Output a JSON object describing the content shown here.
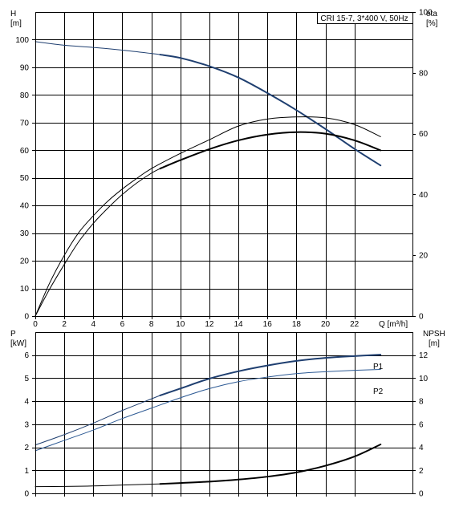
{
  "chart_data": [
    {
      "type": "line",
      "panel": "top",
      "title": "CRI 15-7, 3*400 V, 50Hz",
      "xlabel": "Q [m³/h]",
      "ylabel_left": [
        "H",
        "[m]"
      ],
      "ylabel_right": [
        "eta",
        "[%]"
      ],
      "xlim": [
        0,
        26
      ],
      "xticks": [
        "0",
        "2",
        "4",
        "6",
        "8",
        "10",
        "12",
        "14",
        "16",
        "18",
        "20",
        "22"
      ],
      "ylim_left": [
        0,
        110
      ],
      "yticks_left": [
        "0",
        "10",
        "20",
        "30",
        "40",
        "50",
        "60",
        "70",
        "80",
        "90",
        "100"
      ],
      "ylim_right": [
        0,
        100
      ],
      "yticks_right": [
        "0",
        "20",
        "40",
        "60",
        "80",
        "100"
      ],
      "grid": true,
      "series": [
        {
          "key": "H",
          "axis": "left",
          "color": "#1f3f70",
          "x": [
            0,
            2,
            4,
            6,
            8,
            8.6,
            10,
            12,
            14,
            16,
            18,
            20,
            22,
            23.8
          ],
          "y": [
            99.3,
            98,
            97.2,
            96.2,
            95,
            94.6,
            93.4,
            90.4,
            86.3,
            80.7,
            74.5,
            67.7,
            60.5,
            54.5
          ],
          "bold_from_x": 8.6
        },
        {
          "key": "eta",
          "axis": "right",
          "color": "#000000",
          "x": [
            0,
            1,
            2,
            3,
            4,
            5,
            6,
            7,
            8,
            8.6,
            10,
            12,
            14,
            16,
            18,
            20,
            22,
            23.8
          ],
          "y": [
            0,
            9,
            17,
            24.5,
            30.5,
            35.5,
            40,
            43.8,
            47,
            48.5,
            51.3,
            54.9,
            57.8,
            59.7,
            60.5,
            60,
            57.8,
            54.5
          ],
          "bold_from_x": 8.6
        },
        {
          "key": "eta_thin",
          "axis": "right",
          "color": "#000000",
          "x": [
            0,
            1,
            2,
            3,
            4,
            5,
            6,
            7,
            8,
            10,
            12,
            14,
            16,
            18,
            20,
            22,
            23.8
          ],
          "y": [
            0,
            11,
            20,
            27.5,
            33,
            37.8,
            41.8,
            45.3,
            48.5,
            53.5,
            58,
            62.5,
            64.8,
            65.5,
            65.2,
            63,
            59
          ]
        }
      ]
    },
    {
      "type": "line",
      "panel": "bottom",
      "ylabel_left": [
        "P",
        "[kW]"
      ],
      "ylabel_right": [
        "NPSH",
        "[m]"
      ],
      "xlim": [
        0,
        26
      ],
      "ylim_left": [
        0,
        7
      ],
      "yticks_left": [
        "0",
        "1",
        "2",
        "3",
        "4",
        "5",
        "6"
      ],
      "ylim_right": [
        0,
        14
      ],
      "yticks_right": [
        "0",
        "2",
        "4",
        "6",
        "8",
        "10",
        "12"
      ],
      "grid": true,
      "series": [
        {
          "name": "P1",
          "axis": "left",
          "color": "#1f3f70",
          "x": [
            0,
            2,
            4,
            6,
            8,
            8.6,
            10,
            12,
            14,
            16,
            18,
            20,
            22,
            23.8
          ],
          "y": [
            2.1,
            2.55,
            3.05,
            3.6,
            4.1,
            4.25,
            4.55,
            4.98,
            5.3,
            5.55,
            5.75,
            5.88,
            5.96,
            6.02
          ],
          "bold_from_x": 8.6
        },
        {
          "name": "P2",
          "axis": "left",
          "color": "#2d5a94",
          "x": [
            0,
            2,
            4,
            6,
            8,
            10,
            12,
            14,
            16,
            18,
            20,
            22,
            23.8
          ],
          "y": [
            1.85,
            2.3,
            2.75,
            3.25,
            3.7,
            4.15,
            4.55,
            4.85,
            5.05,
            5.2,
            5.28,
            5.34,
            5.38
          ]
        },
        {
          "key": "NPSH",
          "axis": "right",
          "color": "#000000",
          "x": [
            0,
            2,
            4,
            6,
            8,
            8.6,
            10,
            12,
            14,
            16,
            18,
            20,
            22,
            23.8
          ],
          "y": [
            0.58,
            0.6,
            0.64,
            0.72,
            0.8,
            0.82,
            0.9,
            1.02,
            1.2,
            1.45,
            1.82,
            2.4,
            3.2,
            4.25
          ],
          "bold_from_x": 8.6
        }
      ]
    }
  ]
}
